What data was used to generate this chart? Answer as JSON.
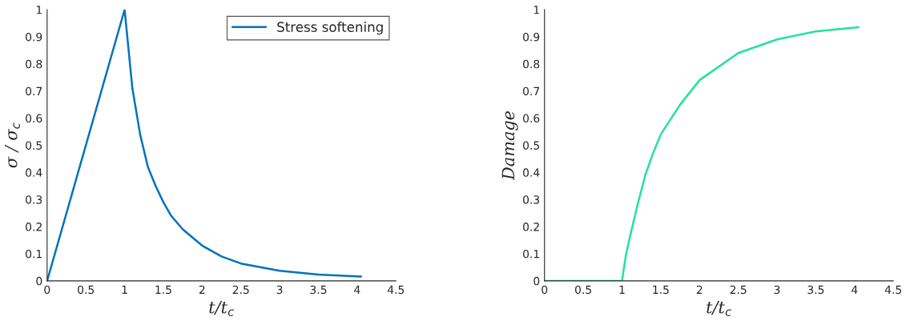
{
  "chart_data": [
    {
      "type": "line",
      "xlabel": "t/t$_{c}$",
      "ylabel": "σ / σ$_{c}$",
      "xlim": [
        0,
        4.5
      ],
      "ylim": [
        0,
        1
      ],
      "xticks": [
        0,
        0.5,
        1,
        1.5,
        2,
        2.5,
        3,
        3.5,
        4,
        4.5
      ],
      "yticks": [
        0,
        0.1,
        0.2,
        0.3,
        0.4,
        0.5,
        0.6,
        0.7,
        0.8,
        0.9,
        1
      ],
      "grid": false,
      "legend": "top right",
      "series": [
        {
          "name": "Stress softening",
          "color": "#0072bd",
          "x": [
            0,
            1,
            1.1,
            1.2,
            1.3,
            1.4,
            1.5,
            1.6,
            1.75,
            2,
            2.25,
            2.5,
            3,
            3.5,
            4.05
          ],
          "values": [
            0,
            1,
            0.71,
            0.54,
            0.42,
            0.35,
            0.29,
            0.24,
            0.19,
            0.13,
            0.09,
            0.064,
            0.037,
            0.023,
            0.016
          ]
        }
      ]
    },
    {
      "type": "line",
      "xlabel": "t/t$_{c}$",
      "ylabel": "Damage",
      "xlim": [
        0,
        4.5
      ],
      "ylim": [
        0,
        1
      ],
      "xticks": [
        0,
        0.5,
        1,
        1.5,
        2,
        2.5,
        3,
        3.5,
        4,
        4.5
      ],
      "yticks": [
        0,
        0.1,
        0.2,
        0.3,
        0.4,
        0.5,
        0.6,
        0.7,
        0.8,
        0.9,
        1
      ],
      "grid": false,
      "series": [
        {
          "color": "#21e39b",
          "x": [
            0,
            1,
            1.05,
            1.1,
            1.2,
            1.3,
            1.4,
            1.5,
            1.75,
            2,
            2.5,
            3,
            3.5,
            4.05
          ],
          "values": [
            0,
            0,
            0.095,
            0.16,
            0.28,
            0.39,
            0.47,
            0.54,
            0.65,
            0.74,
            0.84,
            0.89,
            0.92,
            0.935
          ]
        }
      ]
    }
  ]
}
